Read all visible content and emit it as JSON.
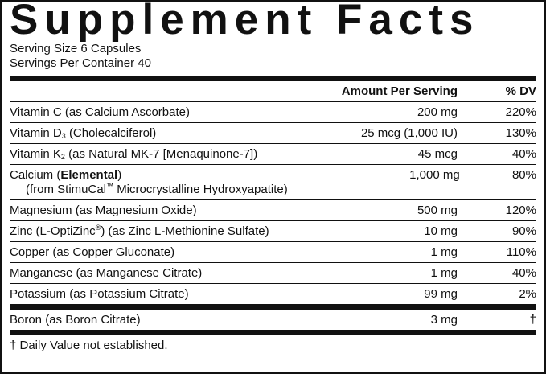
{
  "header": {
    "title": "Supplement Facts",
    "serving_size": "Serving Size 6 Capsules",
    "servings_per_container": "Servings Per Container 40"
  },
  "table": {
    "columns": [
      "Amount Per Serving",
      "% DV"
    ],
    "rows": [
      {
        "name": [
          "Vitamin C (as Calcium Ascorbate)"
        ],
        "amount": "200 mg",
        "dv": "220%"
      },
      {
        "name": [
          "Vitamin D",
          "3",
          "(Cholecalciferol)"
        ],
        "amount": "25 mcg (1,000 IU)",
        "dv": "130%"
      },
      {
        "name": [
          "Vitamin K",
          "2",
          "(as Natural MK-7 [Menaquinone-7])"
        ],
        "amount": "45 mcg",
        "dv": "40%"
      },
      {
        "name": [
          "Calcium (",
          "Elemental",
          ")"
        ],
        "source": [
          "(from StimuCal",
          "™",
          "Microcrystalline Hydroxyapatite)"
        ],
        "amount": "1,000 mg",
        "dv": "80%"
      },
      {
        "name": [
          "Magnesium (as Magnesium Oxide)"
        ],
        "amount": "500 mg",
        "dv": "120%"
      },
      {
        "name": [
          "Zinc (L-OptiZinc",
          "®",
          ")",
          "(as Zinc L-Methionine Sulfate)"
        ],
        "amount": "10 mg",
        "dv": "90%"
      },
      {
        "name": [
          "Copper (as Copper Gluconate)"
        ],
        "amount": "1 mg",
        "dv": "110%"
      },
      {
        "name": [
          "Manganese (as Manganese Citrate)"
        ],
        "amount": "1 mg",
        "dv": "40%"
      },
      {
        "name": [
          "Potassium (as Potassium Citrate)"
        ],
        "amount": "99 mg",
        "dv": "2%"
      },
      {
        "name": [
          "Boron (as Boron Citrate)"
        ],
        "amount": "3 mg",
        "dv": "†"
      }
    ]
  },
  "footnote": "† Daily Value not established."
}
